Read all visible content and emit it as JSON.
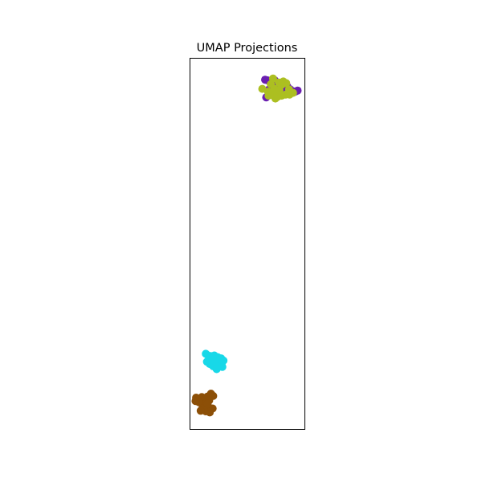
{
  "chart_data": {
    "type": "scatter",
    "title": "UMAP Projections",
    "xlabel": "",
    "ylabel": "",
    "xlim": [
      0.0,
      2.0
    ],
    "ylim": [
      0.0,
      6.5
    ],
    "grid": false,
    "ticks_visible": false,
    "series": [
      {
        "color": "#6a1fb0",
        "points": [
          [
            1.31,
            6.13
          ],
          [
            1.35,
            6.12
          ],
          [
            1.4,
            6.1
          ],
          [
            1.44,
            6.08
          ],
          [
            1.48,
            6.12
          ],
          [
            1.52,
            6.05
          ],
          [
            1.56,
            6.03
          ],
          [
            1.62,
            6.0
          ],
          [
            1.66,
            5.98
          ],
          [
            1.7,
            6.01
          ],
          [
            1.75,
            5.96
          ],
          [
            1.79,
            5.93
          ],
          [
            1.84,
            5.92
          ],
          [
            1.88,
            5.94
          ],
          [
            1.38,
            5.96
          ],
          [
            1.42,
            5.9
          ],
          [
            1.46,
            5.85
          ],
          [
            1.5,
            5.88
          ],
          [
            1.33,
            5.82
          ],
          [
            1.6,
            5.9
          ]
        ]
      },
      {
        "color": "#acbf21",
        "points": [
          [
            1.26,
            5.97
          ],
          [
            1.36,
            5.92
          ],
          [
            1.41,
            6.05
          ],
          [
            1.47,
            5.97
          ],
          [
            1.45,
            6.15
          ],
          [
            1.55,
            6.08
          ],
          [
            1.63,
            6.1
          ],
          [
            1.68,
            6.07
          ],
          [
            1.73,
            5.96
          ],
          [
            1.8,
            5.9
          ],
          [
            1.74,
            5.87
          ],
          [
            1.67,
            5.87
          ],
          [
            1.6,
            5.85
          ],
          [
            1.53,
            5.83
          ],
          [
            1.44,
            5.86
          ],
          [
            1.37,
            5.85
          ],
          [
            1.52,
            5.9
          ],
          [
            1.6,
            6.04
          ],
          [
            1.49,
            5.8
          ],
          [
            1.56,
            5.95
          ]
        ]
      },
      {
        "color": "#18d8e8",
        "points": [
          [
            0.27,
            1.32
          ],
          [
            0.31,
            1.29
          ],
          [
            0.36,
            1.28
          ],
          [
            0.42,
            1.29
          ],
          [
            0.48,
            1.26
          ],
          [
            0.54,
            1.24
          ],
          [
            0.58,
            1.2
          ],
          [
            0.55,
            1.16
          ],
          [
            0.48,
            1.12
          ],
          [
            0.4,
            1.1
          ],
          [
            0.34,
            1.14
          ],
          [
            0.29,
            1.18
          ],
          [
            0.33,
            1.22
          ],
          [
            0.38,
            1.2
          ],
          [
            0.45,
            1.18
          ],
          [
            0.52,
            1.22
          ],
          [
            0.46,
            1.05
          ],
          [
            0.56,
            1.09
          ],
          [
            0.39,
            1.25
          ]
        ]
      },
      {
        "color": "#8c4f07",
        "points": [
          [
            0.1,
            0.55
          ],
          [
            0.15,
            0.53
          ],
          [
            0.2,
            0.56
          ],
          [
            0.26,
            0.52
          ],
          [
            0.3,
            0.57
          ],
          [
            0.36,
            0.62
          ],
          [
            0.4,
            0.58
          ],
          [
            0.33,
            0.5
          ],
          [
            0.27,
            0.46
          ],
          [
            0.21,
            0.43
          ],
          [
            0.15,
            0.47
          ],
          [
            0.09,
            0.49
          ],
          [
            0.21,
            0.36
          ],
          [
            0.27,
            0.31
          ],
          [
            0.34,
            0.29
          ],
          [
            0.39,
            0.36
          ],
          [
            0.31,
            0.4
          ],
          [
            0.24,
            0.36
          ],
          [
            0.18,
            0.32
          ],
          [
            0.3,
            0.44
          ]
        ]
      }
    ]
  }
}
